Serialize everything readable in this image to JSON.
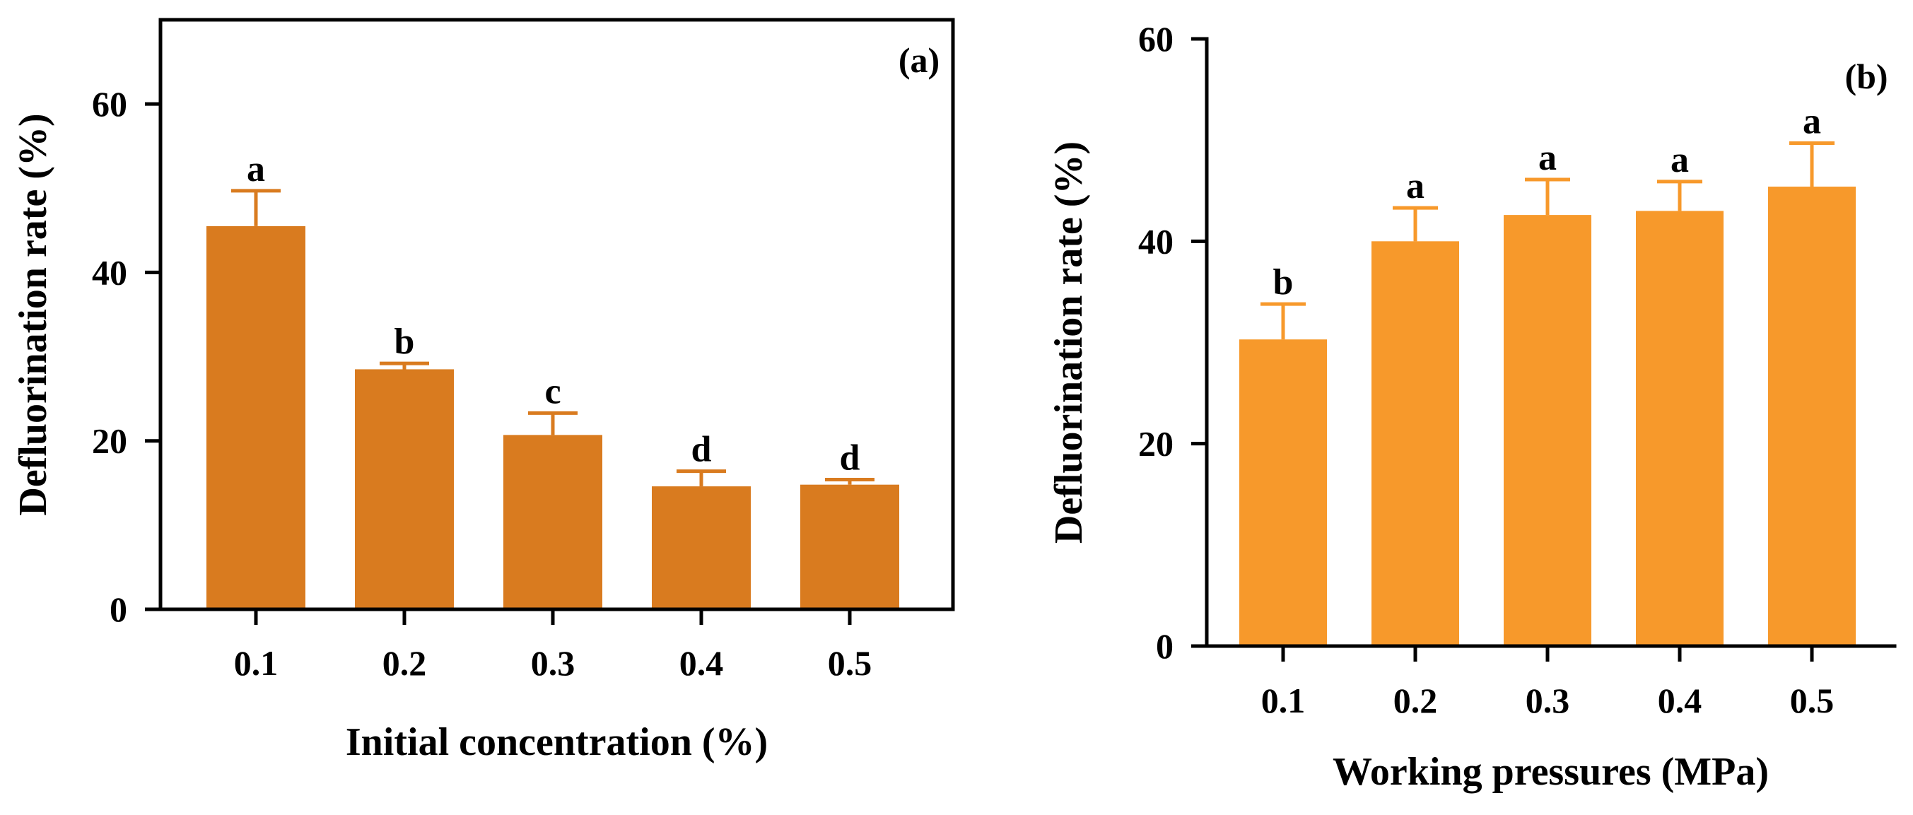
{
  "chart_data": [
    {
      "type": "bar",
      "panel_label": "(a)",
      "xlabel": "Initial concentration (%)",
      "ylabel": "Defluorination rate (%)",
      "categories": [
        "0.1",
        "0.2",
        "0.3",
        "0.4",
        "0.5"
      ],
      "values": [
        45.5,
        28.5,
        20.7,
        14.6,
        14.8
      ],
      "errors": [
        4.2,
        0.7,
        2.6,
        1.8,
        0.6
      ],
      "significance": [
        "a",
        "b",
        "c",
        "d",
        "d"
      ],
      "ylim": [
        0,
        70
      ],
      "yticks": [
        0,
        20,
        40,
        60
      ],
      "ytick_labels": [
        "0",
        "20",
        "40",
        "60"
      ],
      "box": true,
      "grid": false,
      "bar_color": "#d97b1f",
      "error_color": "#d97b1f"
    },
    {
      "type": "bar",
      "panel_label": "(b)",
      "xlabel": "Working pressures (MPa)",
      "ylabel": "Defluorination rate (%)",
      "categories": [
        "0.1",
        "0.2",
        "0.3",
        "0.4",
        "0.5"
      ],
      "values": [
        30.3,
        40.0,
        42.6,
        43.0,
        45.4
      ],
      "errors": [
        3.5,
        3.3,
        3.5,
        2.9,
        4.3
      ],
      "significance": [
        "b",
        "a",
        "a",
        "a",
        "a"
      ],
      "ylim": [
        0,
        60
      ],
      "yticks": [
        0,
        20,
        40,
        60
      ],
      "ytick_labels": [
        "0",
        "20",
        "40",
        "60"
      ],
      "box": false,
      "grid": false,
      "bar_color": "#f7992b",
      "error_color": "#f7992b"
    }
  ]
}
